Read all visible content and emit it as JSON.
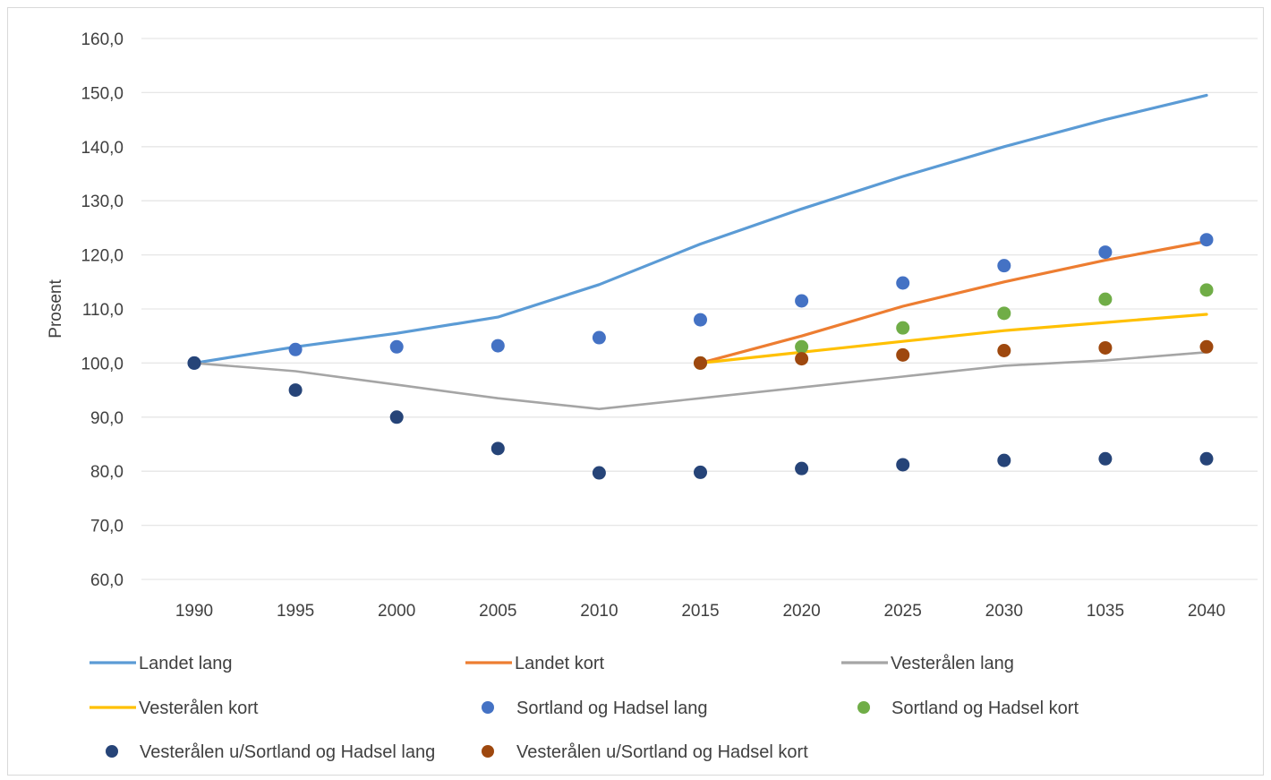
{
  "chart_data": {
    "type": "line",
    "title": "",
    "xlabel": "",
    "ylabel": "Prosent",
    "categories": [
      "1990",
      "1995",
      "2000",
      "2005",
      "2010",
      "2015",
      "2020",
      "2025",
      "2030",
      "1035",
      "2040"
    ],
    "yticks": [
      "60,0",
      "70,0",
      "80,0",
      "90,0",
      "100,0",
      "110,0",
      "120,0",
      "130,0",
      "140,0",
      "150,0",
      "160,0"
    ],
    "ylim": [
      60,
      160
    ],
    "grid": true,
    "legend_position": "bottom",
    "series": [
      {
        "name": "Landet lang",
        "kind": "line",
        "color": "#5b9bd5",
        "values": [
          100,
          103,
          105.5,
          108.5,
          114.5,
          122,
          128.5,
          134.5,
          140,
          145,
          149.5
        ]
      },
      {
        "name": "Landet kort",
        "kind": "line",
        "color": "#ed7d31",
        "values": [
          null,
          null,
          null,
          null,
          null,
          100,
          105,
          110.5,
          115,
          119,
          122.5
        ]
      },
      {
        "name": "Vesterålen lang",
        "kind": "line",
        "color": "#a5a5a5",
        "values": [
          100,
          98.5,
          96,
          93.5,
          91.5,
          93.5,
          95.5,
          97.5,
          99.5,
          100.5,
          102
        ]
      },
      {
        "name": "Vesterålen kort",
        "kind": "line",
        "color": "#ffc000",
        "values": [
          null,
          null,
          null,
          null,
          null,
          100,
          102,
          104,
          106,
          107.5,
          109
        ]
      },
      {
        "name": "Sortland og Hadsel lang",
        "kind": "scatter",
        "color": "#4472c4",
        "values": [
          100,
          102.5,
          103,
          103.2,
          104.7,
          108,
          111.5,
          114.8,
          118,
          120.5,
          122.8
        ]
      },
      {
        "name": "Sortland og Hadsel kort",
        "kind": "scatter",
        "color": "#70ad47",
        "values": [
          null,
          null,
          null,
          null,
          null,
          100,
          103,
          106.5,
          109.2,
          111.8,
          113.5
        ]
      },
      {
        "name": "Vesterålen u/Sortland og Hadsel lang",
        "kind": "scatter",
        "color": "#264478",
        "values": [
          100,
          95,
          90,
          84.2,
          79.7,
          79.8,
          80.5,
          81.2,
          82,
          82.3,
          82.3
        ]
      },
      {
        "name": "Vesterålen u/Sortland og Hadsel kort",
        "kind": "scatter",
        "color": "#9e480e",
        "values": [
          null,
          null,
          null,
          null,
          null,
          100,
          100.8,
          101.5,
          102.3,
          102.8,
          103
        ]
      }
    ]
  }
}
